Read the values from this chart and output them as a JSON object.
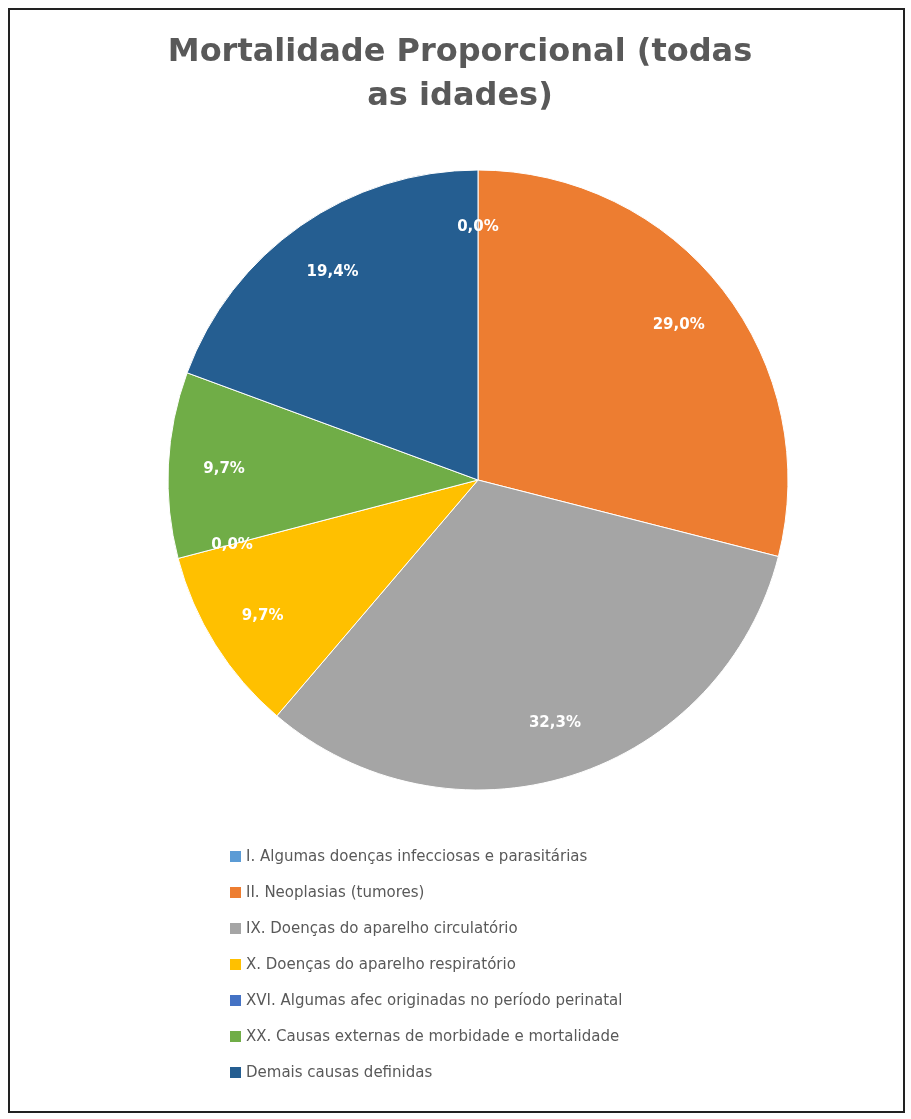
{
  "chart_data": {
    "type": "pie",
    "title": "Mortalidade  Proporcional  (todas as idades)",
    "categories": [
      "I.   Algumas doenças infecciosas e parasitárias",
      "II.  Neoplasias (tumores)",
      "IX.  Doenças do aparelho circulatório",
      "X.   Doenças do aparelho respiratório",
      "XVI. Algumas afec originadas no período perinatal",
      "XX.  Causas externas de morbidade e mortalidade",
      "Demais causas definidas"
    ],
    "values": [
      0.0,
      29.0,
      32.3,
      9.7,
      0.0,
      9.7,
      19.4
    ],
    "colors": [
      "#5b9bd5",
      "#ed7d31",
      "#a5a5a5",
      "#ffc000",
      "#4472c4",
      "#70ad47",
      "#255e91"
    ],
    "value_labels": [
      "0,0%",
      "29,0%",
      "32,3%",
      "9,7%",
      "0,0%",
      "9,7%",
      "19,4%"
    ],
    "legend": "bottom"
  }
}
